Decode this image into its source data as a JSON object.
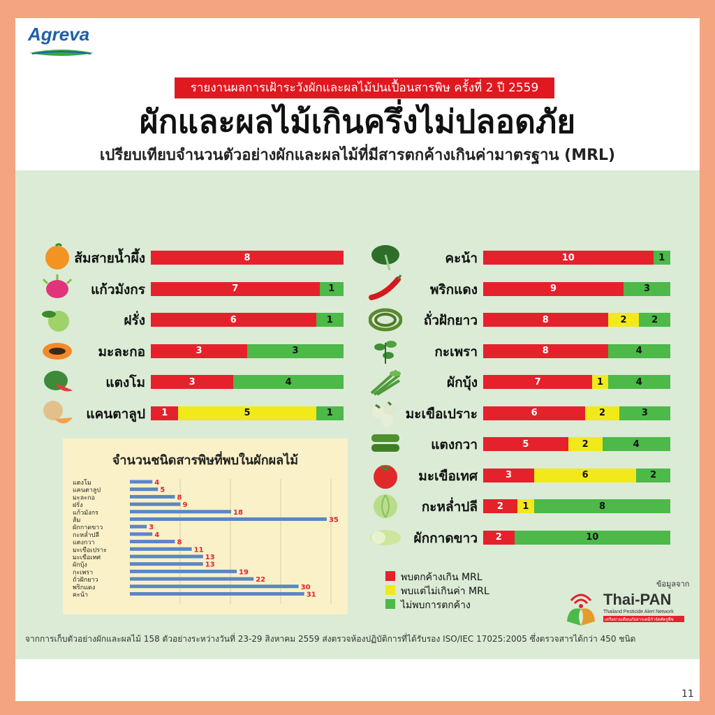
{
  "header": {
    "logo": "Agreva",
    "report_banner": "รายงานผลการเฝ้าระวังผักและผลไม้ปนเปื้อนสารพิษ ครั้งที่ 2 ปี 2559",
    "title": "ผักและผลไม้เกินครึ่งไม่ปลอดภัย",
    "subtitle": "เปรียบเทียบจำนวนตัวอย่างผักและผลไม้ที่มีสารตกค้างเกินค่ามาตรฐาน (MRL)"
  },
  "colors": {
    "red": "#e5212c",
    "yellow": "#f2e91b",
    "green": "#4cb948",
    "bar_blue": "#5b86c4"
  },
  "chart_data": [
    {
      "type": "bar",
      "stacked": true,
      "orientation": "horizontal",
      "title": "",
      "categories": [
        "ส้มสายน้ำผึ้ง",
        "แก้วมังกร",
        "ฝรั่ง",
        "มะละกอ",
        "แตงโม",
        "แคนตาลูป"
      ],
      "icons": [
        "orange-icon",
        "dragonfruit-icon",
        "guava-icon",
        "papaya-icon",
        "watermelon-icon",
        "cantaloupe-icon"
      ],
      "series": [
        {
          "name": "พบตกค้างเกิน MRL",
          "values": [
            8,
            7,
            6,
            3,
            3,
            1
          ]
        },
        {
          "name": "พบแต่ไม่เกินค่า MRL",
          "values": [
            0,
            0,
            0,
            0,
            0,
            5
          ]
        },
        {
          "name": "ไม่พบการตกค้าง",
          "values": [
            0,
            1,
            1,
            3,
            4,
            1
          ]
        }
      ]
    },
    {
      "type": "bar",
      "stacked": true,
      "orientation": "horizontal",
      "title": "",
      "categories": [
        "คะน้า",
        "พริกแดง",
        "ถั่วฝักยาว",
        "กะเพรา",
        "ผักบุ้ง",
        "มะเขือเปราะ",
        "แตงกวา",
        "มะเขือเทศ",
        "กะหล่ำปลี",
        "ผักกาดขาว"
      ],
      "icons": [
        "kale-icon",
        "red-chili-icon",
        "long-bean-icon",
        "basil-icon",
        "morning-glory-icon",
        "thai-eggplant-icon",
        "cucumber-icon",
        "tomato-icon",
        "cabbage-icon",
        "chinese-cabbage-icon"
      ],
      "series": [
        {
          "name": "พบตกค้างเกิน MRL",
          "values": [
            10,
            9,
            8,
            8,
            7,
            6,
            5,
            3,
            2,
            2
          ]
        },
        {
          "name": "พบแต่ไม่เกินค่า MRL",
          "values": [
            0,
            0,
            2,
            0,
            1,
            2,
            2,
            6,
            1,
            0
          ]
        },
        {
          "name": "ไม่พบการตกค้าง",
          "values": [
            1,
            3,
            2,
            4,
            4,
            3,
            4,
            2,
            8,
            10
          ]
        }
      ]
    },
    {
      "type": "bar",
      "orientation": "horizontal",
      "title": "จำนวนชนิดสารพิษที่พบในผักผลไม้",
      "categories": [
        "แตงโม",
        "แคนตาลูป",
        "มะละกอ",
        "ฝรั่ง",
        "แก้วมังกร",
        "ส้ม",
        "ผักกาดขาว",
        "กะหล่ำปลี",
        "แตงกวา",
        "มะเขือเปราะ",
        "มะเขือเทศ",
        "ผักบุ้ง",
        "กะเพรา",
        "ถั่วฝักยาว",
        "พริกแดง",
        "คะน้า"
      ],
      "values": [
        4,
        5,
        8,
        9,
        18,
        35,
        3,
        4,
        8,
        11,
        13,
        13,
        19,
        22,
        30,
        31
      ],
      "xlim": [
        0,
        36
      ],
      "grid": true
    }
  ],
  "legend": {
    "items": [
      {
        "label": "พบตกค้างเกิน MRL",
        "color": "#e5212c"
      },
      {
        "label": "พบแต่ไม่เกินค่า MRL",
        "color": "#f2e91b"
      },
      {
        "label": "ไม่พบการตกค้าง",
        "color": "#4cb948"
      }
    ]
  },
  "source": {
    "label": "ข้อมูลจาก",
    "org": "Thai-PAN",
    "org_full": "Thailand Pesticide Alert Network",
    "org_thai": "เครือข่ายเตือนภัยสารเคมีกำจัดศัตรูพืช"
  },
  "footnote": "จากการเก็บตัวอย่างผักและผลไม้ 158 ตัวอย่างระหว่างวันที่ 23-29 สิงหาคม 2559 ส่งตรวจห้องปฏิบัติการที่ได้รับรอง ISO/IEC 17025:2005 ซึ่งตรวจสารได้กว่า 450 ชนิด",
  "page_number": "11"
}
